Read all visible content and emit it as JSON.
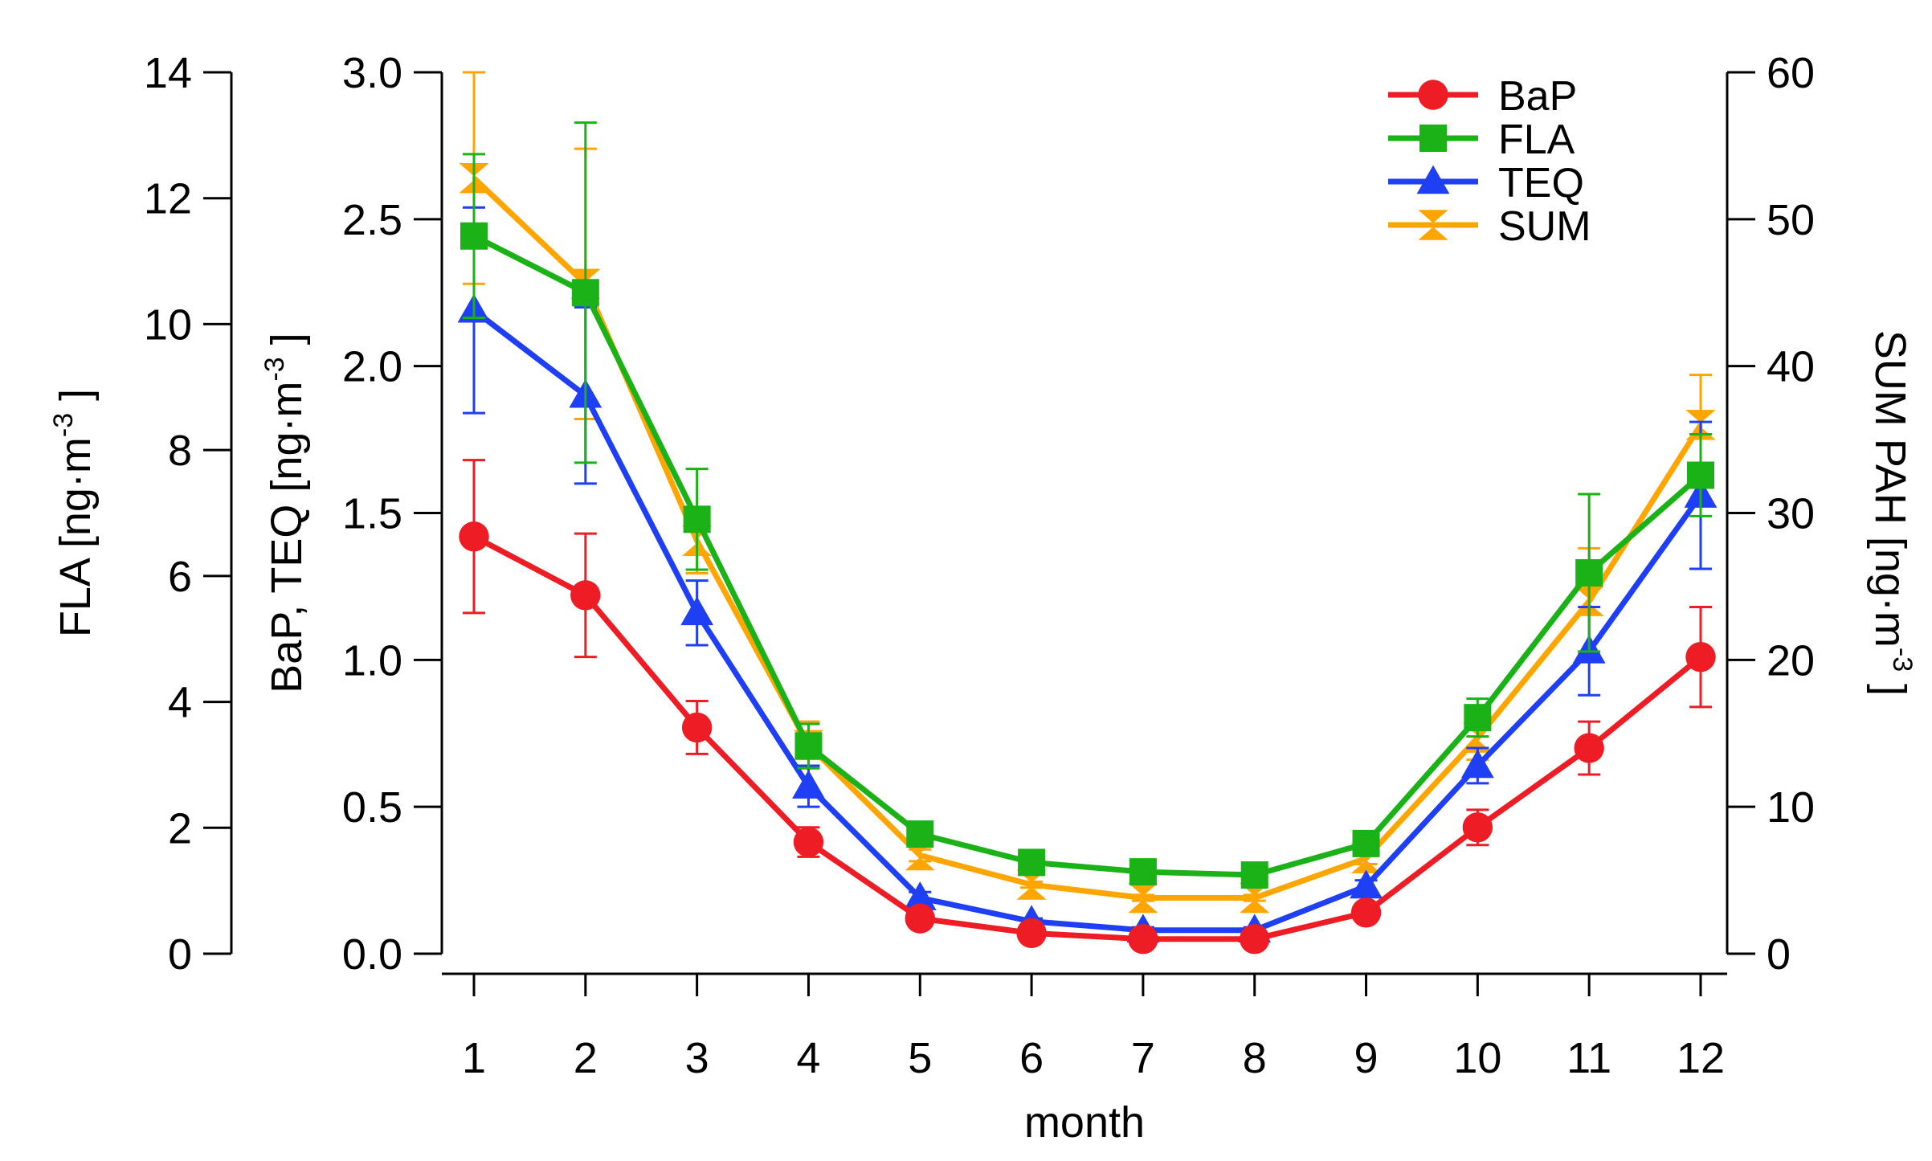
{
  "chart_data": {
    "type": "line",
    "x": [
      1,
      2,
      3,
      4,
      5,
      6,
      7,
      8,
      9,
      10,
      11,
      12
    ],
    "xlabel": "month",
    "axes": {
      "left_outer": {
        "label": "FLA [ng·m",
        "exponent": "-3",
        "close": "]",
        "ylim": [
          0,
          14
        ],
        "ticks": [
          "0",
          "2",
          "4",
          "6",
          "8",
          "10",
          "12",
          "14"
        ],
        "tick_values": [
          0,
          2,
          4,
          6,
          8,
          10,
          12,
          14
        ]
      },
      "left_inner": {
        "label": "BaP, TEQ [ng·m",
        "exponent": "-3",
        "close": "]",
        "ylim": [
          0,
          3.0
        ],
        "ticks": [
          "0.0",
          "0.5",
          "1.0",
          "1.5",
          "2.0",
          "2.5",
          "3.0"
        ],
        "tick_values": [
          0,
          0.5,
          1.0,
          1.5,
          2.0,
          2.5,
          3.0
        ]
      },
      "right": {
        "label": "SUM PAH [ng·m",
        "exponent": "-3",
        "close": "]",
        "ylim": [
          0,
          60
        ],
        "ticks": [
          "0",
          "10",
          "20",
          "30",
          "40",
          "50",
          "60"
        ],
        "tick_values": [
          0,
          10,
          20,
          30,
          40,
          50,
          60
        ]
      }
    },
    "x_ticks": [
      "1",
      "2",
      "3",
      "4",
      "5",
      "6",
      "7",
      "8",
      "9",
      "10",
      "11",
      "12"
    ],
    "series": [
      {
        "name": "BaP",
        "axis": "left_inner",
        "color": "#ee1c24",
        "marker": "circle",
        "values": [
          1.42,
          1.22,
          0.77,
          0.38,
          0.12,
          0.07,
          0.05,
          0.05,
          0.14,
          0.43,
          0.7,
          1.01
        ],
        "err": [
          0.26,
          0.21,
          0.09,
          0.05,
          0.02,
          0.01,
          0.01,
          0.01,
          0.03,
          0.06,
          0.09,
          0.17
        ]
      },
      {
        "name": "FLA",
        "axis": "left_outer",
        "color": "#1bb218",
        "marker": "square",
        "values": [
          11.4,
          10.5,
          6.9,
          3.3,
          1.9,
          1.45,
          1.3,
          1.25,
          1.75,
          3.75,
          6.05,
          7.6
        ],
        "err": [
          1.3,
          2.7,
          0.8,
          0.35,
          0.1,
          0.05,
          0.05,
          0.05,
          0.1,
          0.3,
          1.25,
          0.65
        ]
      },
      {
        "name": "TEQ",
        "axis": "left_inner",
        "color": "#1f3ff5",
        "marker": "triangle",
        "values": [
          2.19,
          1.9,
          1.16,
          0.57,
          0.19,
          0.11,
          0.08,
          0.08,
          0.23,
          0.64,
          1.03,
          1.56
        ],
        "err": [
          0.35,
          0.3,
          0.11,
          0.07,
          0.02,
          0.01,
          0.01,
          0.01,
          0.02,
          0.06,
          0.15,
          0.25
        ]
      },
      {
        "name": "SUM",
        "axis": "right",
        "color": "#ffa500",
        "marker": "hourglass",
        "values": [
          52.8,
          45.6,
          28.1,
          14.2,
          6.7,
          4.7,
          3.8,
          3.8,
          6.5,
          14.7,
          24.0,
          36.0
        ],
        "err": [
          7.2,
          9.2,
          2.2,
          1.6,
          0.4,
          0.2,
          0.2,
          0.2,
          0.4,
          1.5,
          3.6,
          3.4
        ]
      }
    ],
    "legend": {
      "placement": "top-right"
    }
  }
}
